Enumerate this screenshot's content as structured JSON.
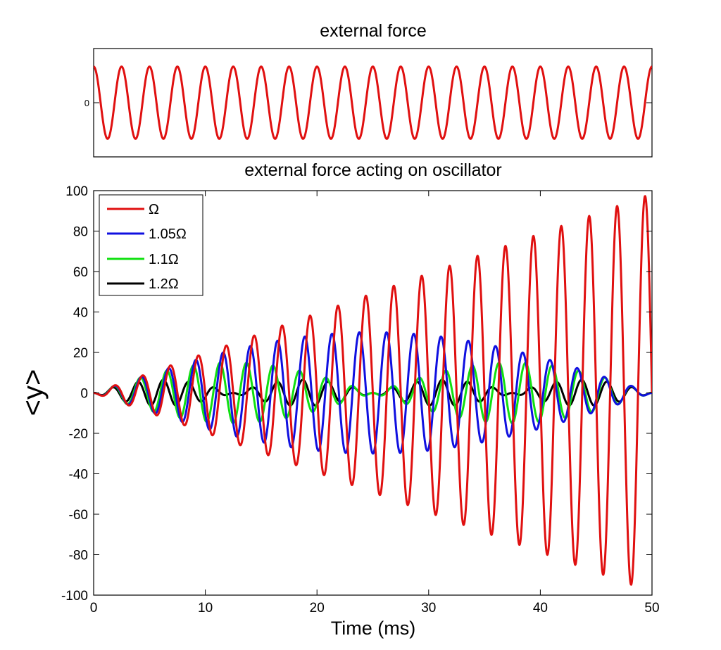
{
  "chart_data": [
    {
      "type": "line",
      "title": "external force",
      "xlabel": "",
      "ylabel": "",
      "xlim": [
        0,
        50
      ],
      "ylim": [
        -1.5,
        1.5
      ],
      "y_ticks": [
        0
      ],
      "grid": false,
      "series": [
        {
          "color": "#e01010",
          "function": "cos",
          "amplitude": 1,
          "period_ms": 2.5,
          "x_range": [
            0,
            50
          ]
        }
      ]
    },
    {
      "type": "line",
      "title": "external force acting on oscillator",
      "xlabel": "Time (ms)",
      "ylabel": "<y>",
      "xlim": [
        0,
        50
      ],
      "ylim": [
        -100,
        100
      ],
      "x_ticks": [
        0,
        10,
        20,
        30,
        40,
        50
      ],
      "y_ticks": [
        -100,
        -80,
        -60,
        -40,
        -20,
        0,
        20,
        40,
        60,
        80,
        100
      ],
      "grid": false,
      "legend": {
        "placement": "top-left"
      },
      "series": [
        {
          "name": "Ω",
          "color": "#e01010",
          "envelope": "linear",
          "amplitude_growth_per_ms": 1.97,
          "max_amplitude": 98,
          "period_ms": 2.5,
          "x_range": [
            0,
            50
          ]
        },
        {
          "name": "1.05Ω",
          "color": "#1010e0",
          "envelope": "beat",
          "max_amplitude": 30,
          "beat_period_ms": 50,
          "period_ms": 2.44,
          "x_range": [
            0,
            50
          ]
        },
        {
          "name": "1.1Ω",
          "color": "#10e010",
          "envelope": "beat",
          "max_amplitude": 15,
          "beat_period_ms": 25,
          "period_ms": 2.38,
          "x_range": [
            0,
            50
          ]
        },
        {
          "name": "1.2Ω",
          "color": "#000000",
          "envelope": "beat",
          "max_amplitude": 6.5,
          "beat_period_ms": 12.5,
          "period_ms": 2.27,
          "x_range": [
            0,
            50
          ]
        }
      ]
    }
  ],
  "tick_labels": {
    "top_y": [
      "0"
    ],
    "main_x": [
      "0",
      "10",
      "20",
      "30",
      "40",
      "50"
    ],
    "main_y": [
      "-100",
      "-80",
      "-60",
      "-40",
      "-20",
      "0",
      "20",
      "40",
      "60",
      "80",
      "100"
    ]
  }
}
